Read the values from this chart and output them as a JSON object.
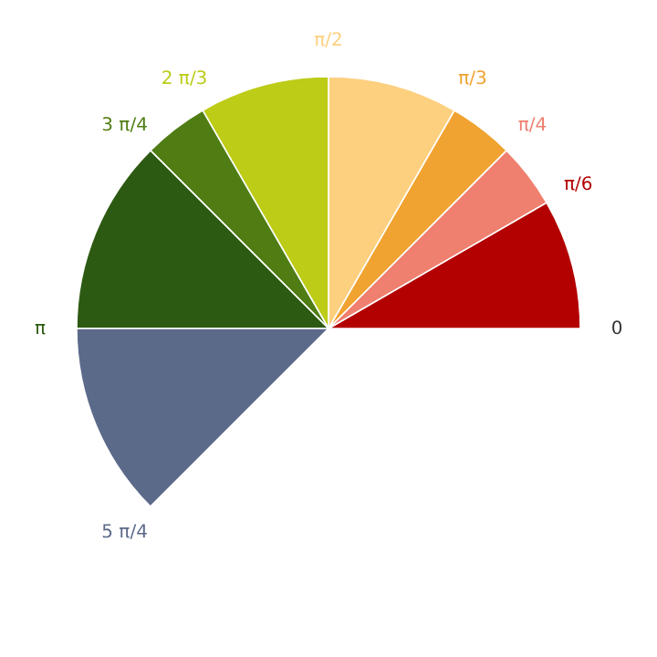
{
  "chart_data": {
    "type": "pie",
    "categories": [
      null,
      null,
      null,
      null,
      null,
      null,
      null,
      null
    ],
    "values": [
      13.33,
      6.67,
      6.67,
      13.33,
      13.33,
      6.67,
      20,
      20
    ],
    "colors": [
      "#b30000",
      "#ef7f6e",
      "#f0a330",
      "#fdd07f",
      "#bccc17",
      "#4f7d14",
      "#2d5a12",
      "#5c6a8a"
    ],
    "annotations": [
      "0",
      "π/6",
      "π/4",
      "π/3",
      "π/2",
      "2 π/3",
      "3 π/4",
      "π",
      "5 π/4"
    ]
  }
}
